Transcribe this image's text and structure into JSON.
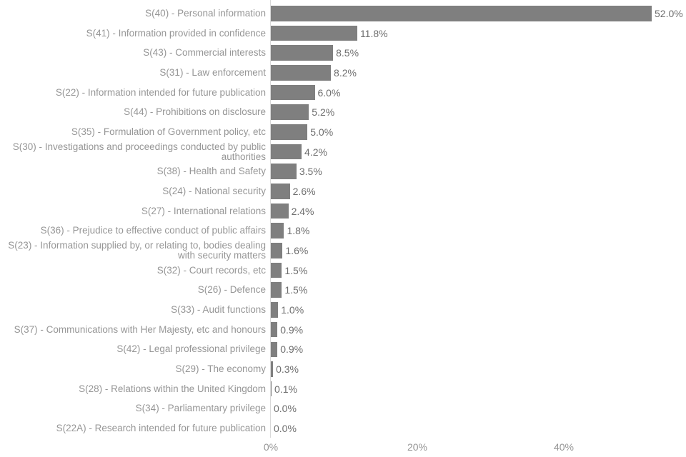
{
  "chart_data": {
    "type": "bar",
    "orientation": "horizontal",
    "title": "",
    "xlabel": "",
    "ylabel": "",
    "categories": [
      "S(40) - Personal information",
      "S(41) - Information provided in confidence",
      "S(43) - Commercial interests",
      "S(31) - Law enforcement",
      "S(22) - Information intended for future publication",
      "S(44) - Prohibitions on disclosure",
      "S(35) - Formulation of Government policy, etc",
      "S(30) - Investigations and proceedings conducted by public authorities",
      "S(38) - Health and Safety",
      "S(24) - National security",
      "S(27) - International relations",
      "S(36) - Prejudice to effective conduct of public affairs",
      "S(23) - Information supplied by, or relating to, bodies dealing with security matters",
      "S(32) - Court records, etc",
      "S(26) - Defence",
      "S(33) - Audit functions",
      "S(37) - Communications with Her Majesty, etc and honours",
      "S(42) - Legal professional privilege",
      "S(29) - The economy",
      "S(28) - Relations within the United Kingdom",
      "S(34) - Parliamentary privilege",
      "S(22A) - Research intended for future publication"
    ],
    "values": [
      52.0,
      11.8,
      8.5,
      8.2,
      6.0,
      5.2,
      5.0,
      4.2,
      3.5,
      2.6,
      2.4,
      1.8,
      1.6,
      1.5,
      1.5,
      1.0,
      0.9,
      0.9,
      0.3,
      0.1,
      0.0,
      0.0
    ],
    "value_labels": [
      "52.0%",
      "11.8%",
      "8.5%",
      "8.2%",
      "6.0%",
      "5.2%",
      "5.0%",
      "4.2%",
      "3.5%",
      "2.6%",
      "2.4%",
      "1.8%",
      "1.6%",
      "1.5%",
      "1.5%",
      "1.0%",
      "0.9%",
      "0.9%",
      "0.3%",
      "0.1%",
      "0.0%",
      "0.0%"
    ],
    "x_ticks": [
      {
        "label": "0%",
        "value": 0
      },
      {
        "label": "20%",
        "value": 20
      },
      {
        "label": "40%",
        "value": 40
      }
    ],
    "xlim": [
      0,
      56.8
    ],
    "grid": false,
    "legend": null,
    "colors": {
      "bar": "#7f7f7f",
      "category_label": "#969696",
      "value_label": "#6e6e6e",
      "tick_label": "#969696",
      "axis_line": "#d9d9d9",
      "background": "#ffffff"
    }
  }
}
